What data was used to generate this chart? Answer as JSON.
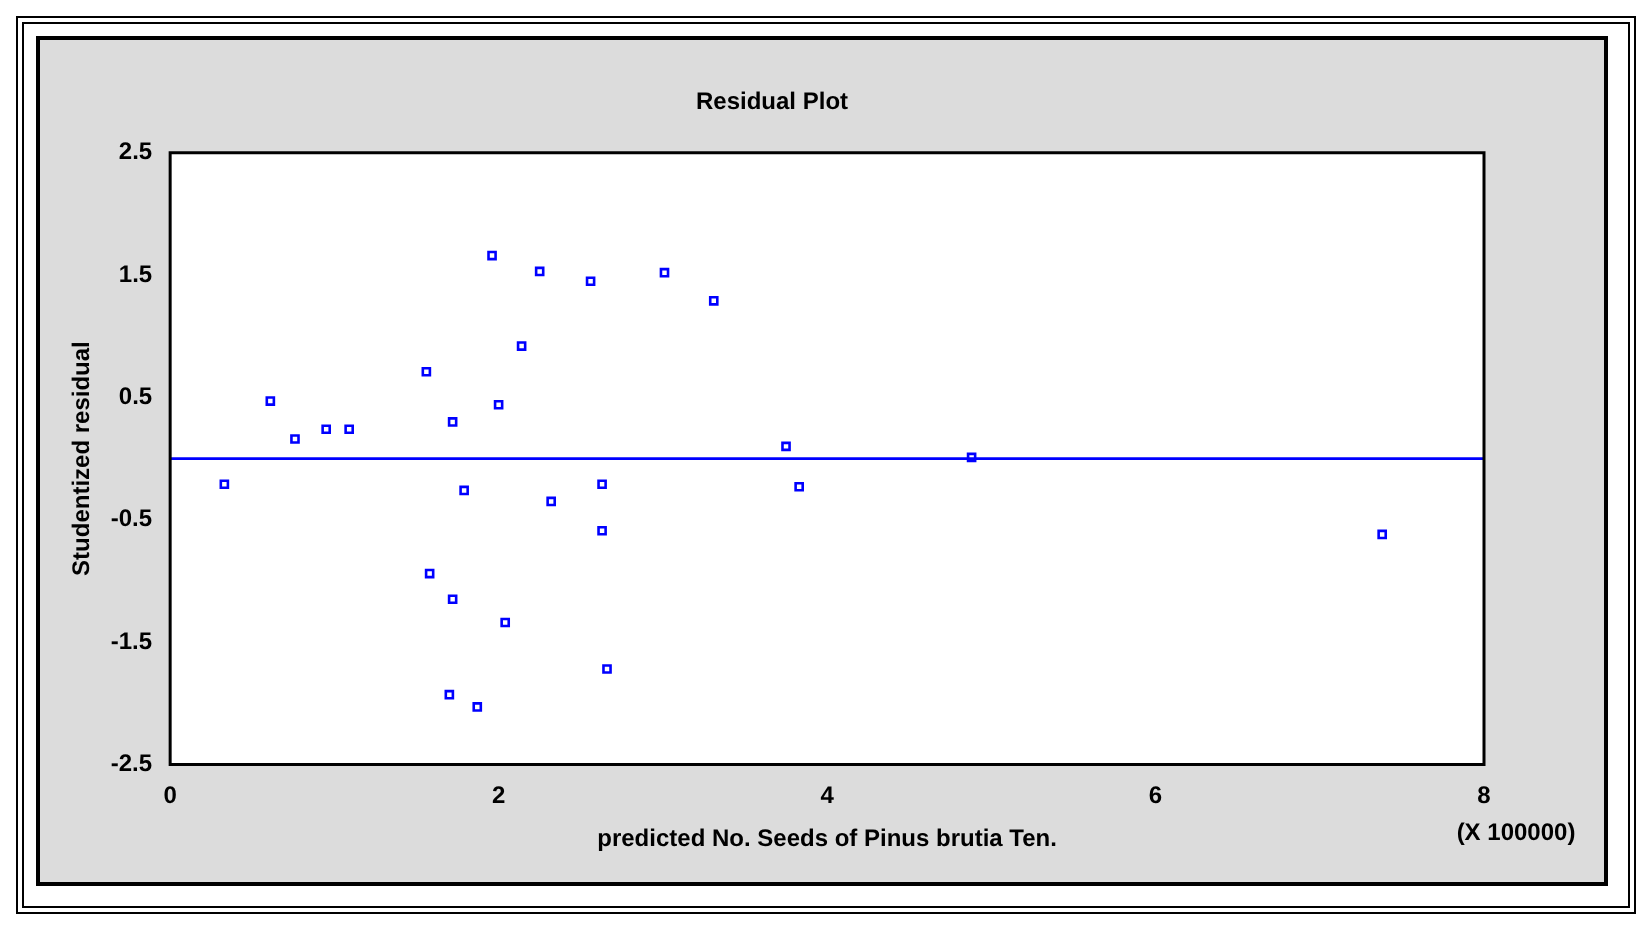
{
  "chart_data": {
    "type": "scatter",
    "title": "Residual Plot",
    "xlabel": "predicted No. Seeds of Pinus brutia Ten.",
    "ylabel": "Studentized residual",
    "annotations": [
      "(X 100000)"
    ],
    "x": [
      0.33,
      0.61,
      0.76,
      0.95,
      1.09,
      1.56,
      1.72,
      1.79,
      1.96,
      2.0,
      2.14,
      2.25,
      2.32,
      2.56,
      2.63,
      2.63,
      2.66,
      3.01,
      3.31,
      3.75,
      3.83,
      1.58,
      1.72,
      2.04,
      1.7,
      1.87,
      4.88,
      7.38
    ],
    "series": [
      {
        "color": "#0000ff",
        "values": [
          -0.21,
          0.47,
          0.16,
          0.24,
          0.24,
          0.71,
          0.3,
          -0.26,
          1.66,
          0.44,
          0.92,
          1.53,
          -0.35,
          1.45,
          -0.21,
          -0.59,
          -1.72,
          1.52,
          1.29,
          0.1,
          -0.23,
          -0.94,
          -1.15,
          -1.34,
          -1.93,
          -2.03,
          0.01,
          -0.62
        ]
      }
    ],
    "xlim": [
      0,
      8
    ],
    "xticks": [
      0,
      2,
      4,
      6,
      8
    ],
    "ylim": [
      -2.5,
      2.5
    ],
    "yticks": [
      -2.5,
      -1.5,
      -0.5,
      0.5,
      1.5,
      2.5
    ],
    "ref_lines": [
      {
        "axis": "y",
        "value": 0,
        "color": "#0000ff"
      }
    ],
    "marker": "square",
    "grid": false,
    "legend": false
  }
}
